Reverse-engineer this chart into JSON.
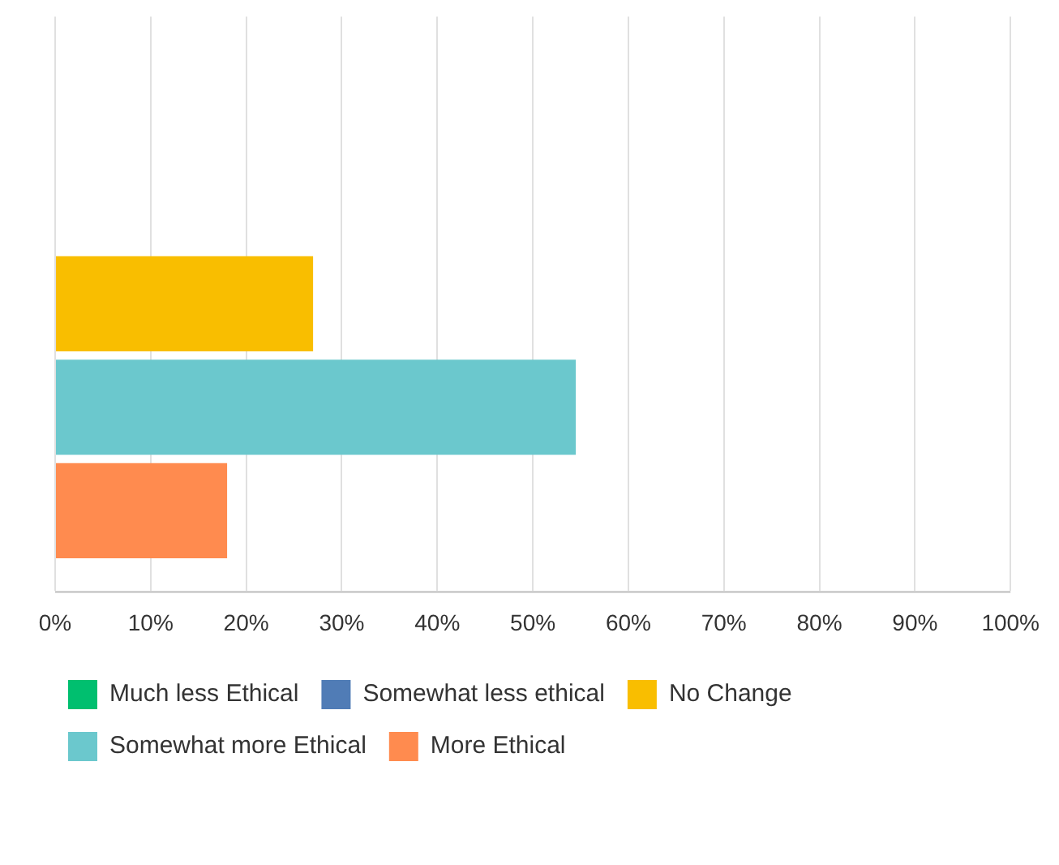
{
  "chart_data": {
    "type": "bar",
    "orientation": "horizontal",
    "categories": [
      null
    ],
    "series": [
      {
        "name": "Much less Ethical",
        "color": "#00bf6f",
        "values": [
          0
        ]
      },
      {
        "name": "Somewhat less ethical",
        "color": "#507cb6",
        "values": [
          0
        ]
      },
      {
        "name": "No Change",
        "color": "#f9be00",
        "values": [
          27
        ]
      },
      {
        "name": "Somewhat more Ethical",
        "color": "#6bc8cd",
        "values": [
          54.5
        ]
      },
      {
        "name": "More Ethical",
        "color": "#ff8b4f",
        "values": [
          18
        ]
      }
    ],
    "xlim": [
      0,
      100
    ],
    "xticks": [
      {
        "value": 0,
        "label": "0%"
      },
      {
        "value": 10,
        "label": "10%"
      },
      {
        "value": 20,
        "label": "20%"
      },
      {
        "value": 30,
        "label": "30%"
      },
      {
        "value": 40,
        "label": "40%"
      },
      {
        "value": 50,
        "label": "50%"
      },
      {
        "value": 60,
        "label": "60%"
      },
      {
        "value": 70,
        "label": "70%"
      },
      {
        "value": 80,
        "label": "80%"
      },
      {
        "value": 90,
        "label": "90%"
      },
      {
        "value": 100,
        "label": "100%"
      }
    ],
    "grid": "x",
    "legend": "bottom left"
  }
}
